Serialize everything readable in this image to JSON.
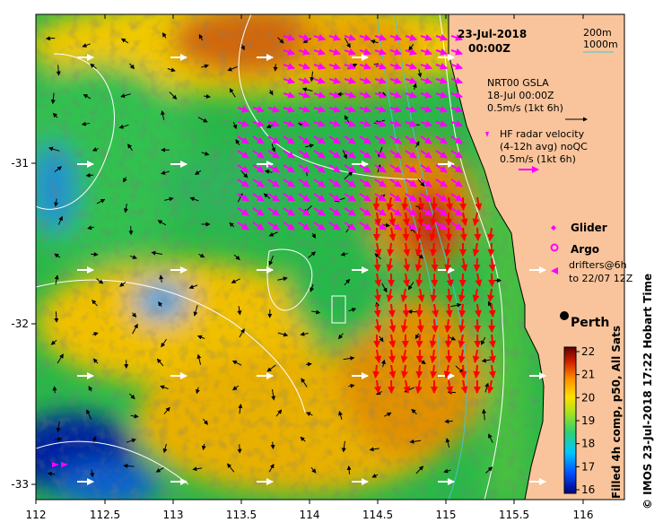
{
  "header": {
    "date": "23-Jul-2018",
    "time": "00:00Z"
  },
  "contours_legend": {
    "item1": "200m",
    "item2": "1000m"
  },
  "legend": {
    "gsla_title": "NRT00 GSLA",
    "gsla_date": "18-Jul 00:00Z",
    "gsla_scale": "0.5m/s (1kt 6h)",
    "hf_title": "HF radar velocity",
    "hf_sub": "(4-12h avg) noQC",
    "hf_scale": "0.5m/s (1kt 6h)",
    "glider": "Glider",
    "argo": "Argo",
    "drifters1": "drifters@6h",
    "drifters2": "to 22/07 12Z"
  },
  "city": "Perth",
  "colorbar": {
    "ticks": [
      "22",
      "21",
      "20",
      "19",
      "18",
      "17",
      "16"
    ],
    "label": "Filled 4h comp, p50, All Sats"
  },
  "credit": "© IMOS 23-Jul-2018 17:22 Hobart Time",
  "axes": {
    "x_ticks": [
      "112",
      "112.5",
      "113",
      "113.5",
      "114",
      "114.5",
      "115",
      "115.5",
      "116"
    ],
    "y_ticks": [
      "-31",
      "-32",
      "-33"
    ]
  },
  "colors": {
    "land": "#f9c49b",
    "gsla_arrow": "#000000",
    "hf_arrow_north": "#ff00ff",
    "hf_arrow_south": "#ff0000",
    "open_ocean_arrow": "#ffffff",
    "isobath_200m": "#ffffff",
    "isobath_1000m": "#3fc8d0"
  }
}
